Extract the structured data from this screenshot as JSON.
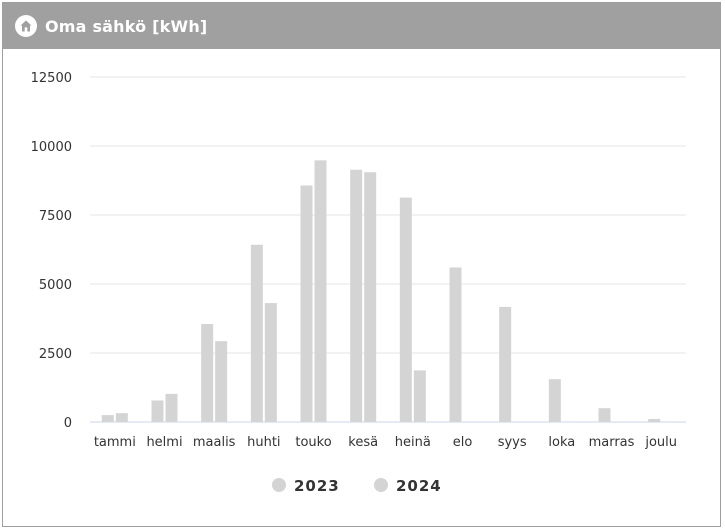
{
  "header": {
    "title": "Oma sähkö [kWh]",
    "icon": "home-icon"
  },
  "chart_data": {
    "type": "bar",
    "categories": [
      "tammi",
      "helmi",
      "maalis",
      "huhti",
      "touko",
      "kesä",
      "heinä",
      "elo",
      "syys",
      "loka",
      "marras",
      "joulu"
    ],
    "series": [
      {
        "name": "2023",
        "values": [
          250,
          780,
          3550,
          6420,
          8570,
          9140,
          8130,
          5600,
          4170,
          1550,
          500,
          110
        ],
        "color": "#d4d4d4"
      },
      {
        "name": "2024",
        "values": [
          320,
          1020,
          2930,
          4310,
          9480,
          9050,
          1870,
          0,
          0,
          0,
          0,
          0
        ],
        "color": "#d4d4d4"
      }
    ],
    "yticks": [
      0,
      2500,
      5000,
      7500,
      10000,
      12500
    ],
    "ylim": [
      0,
      12500
    ],
    "grid": true,
    "legend": "bottom",
    "colors": {
      "grid": "#e6e6e6",
      "baseline": "#ccd6eb",
      "bar": "#d4d4d4"
    }
  }
}
